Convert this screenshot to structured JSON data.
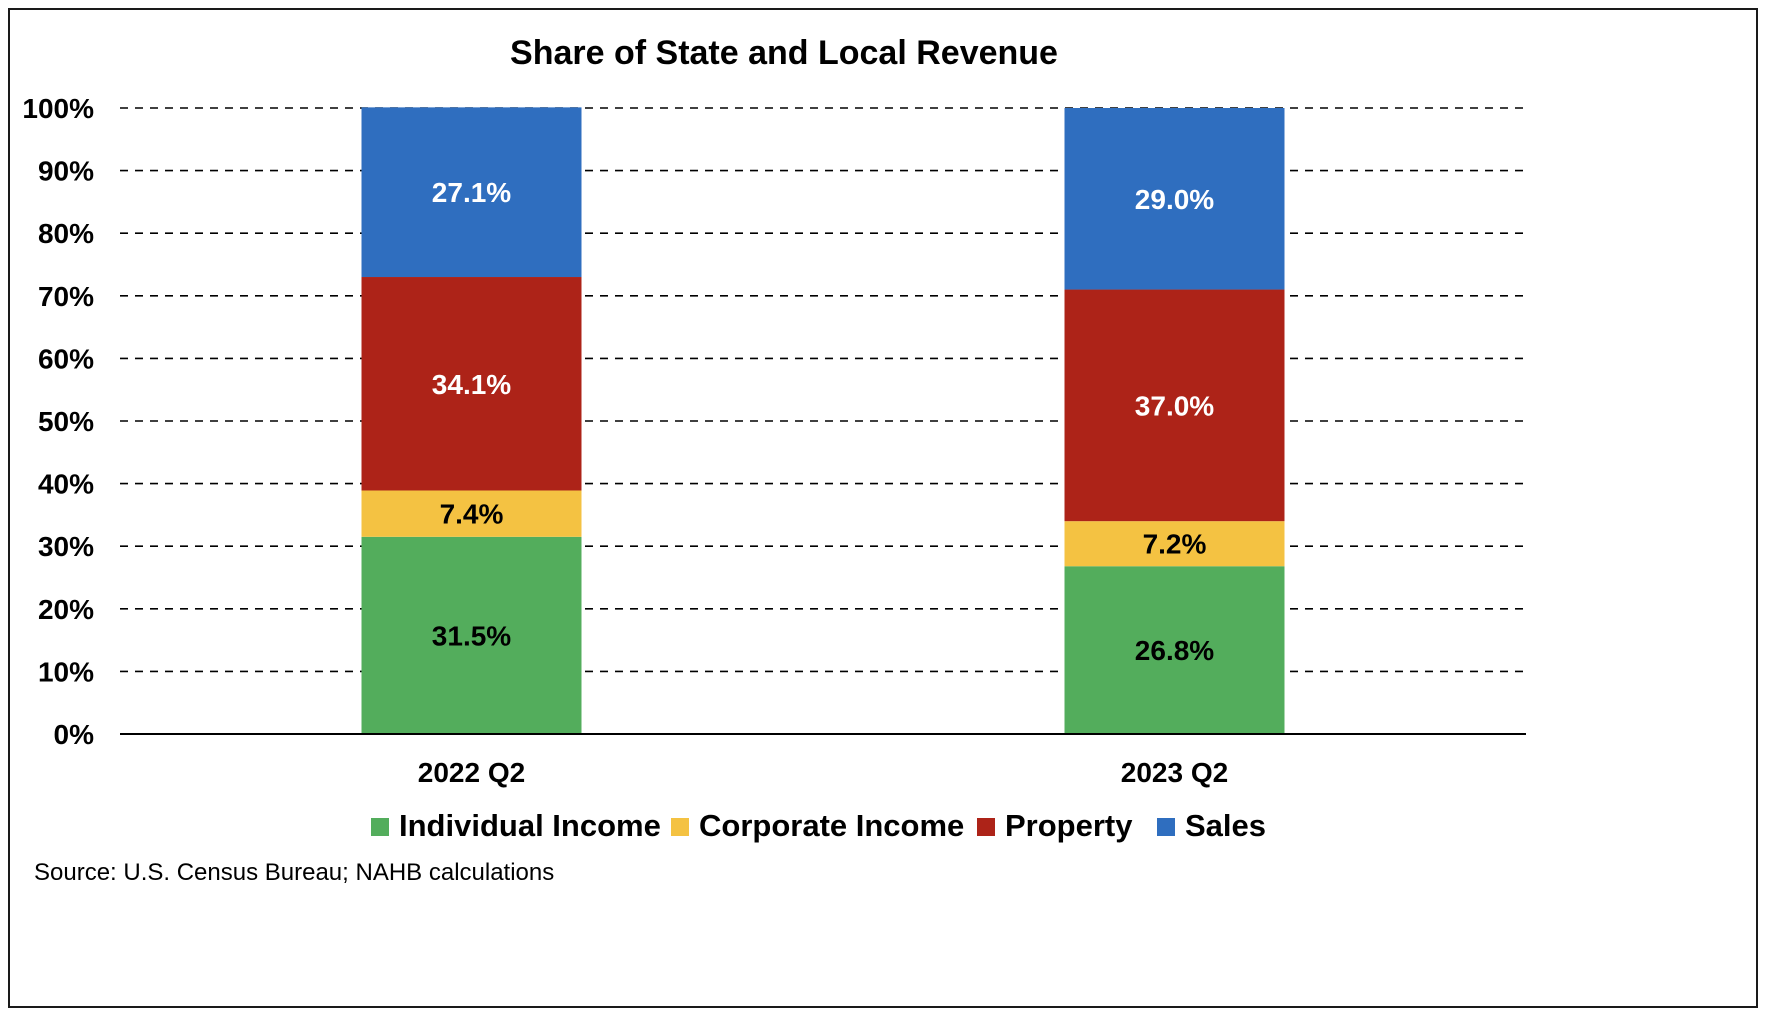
{
  "chart_data": {
    "type": "bar",
    "stacked": true,
    "title": "Share of State and Local Revenue",
    "categories": [
      "2022 Q2",
      "2023 Q2"
    ],
    "series": [
      {
        "name": "Individual Income",
        "values": [
          31.5,
          26.8
        ],
        "labels": [
          "31.5%",
          "26.8%"
        ],
        "color": "#53ad5c",
        "label_color": "#000000"
      },
      {
        "name": "Corporate Income",
        "values": [
          7.4,
          7.2
        ],
        "labels": [
          "7.4%",
          "7.2%"
        ],
        "color": "#f4c242",
        "label_color": "#000000"
      },
      {
        "name": "Property",
        "values": [
          34.1,
          37.0
        ],
        "labels": [
          "34.1%",
          "37.0%"
        ],
        "color": "#ad2318",
        "label_color": "#ffffff"
      },
      {
        "name": "Sales",
        "values": [
          27.1,
          29.0
        ],
        "labels": [
          "27.1%",
          "29.0%"
        ],
        "color": "#2f6ebf",
        "label_color": "#ffffff"
      }
    ],
    "ylim": [
      0,
      100
    ],
    "yticks": [
      0,
      10,
      20,
      30,
      40,
      50,
      60,
      70,
      80,
      90,
      100
    ],
    "ytick_labels": [
      "0%",
      "10%",
      "20%",
      "30%",
      "40%",
      "50%",
      "60%",
      "70%",
      "80%",
      "90%",
      "100%"
    ],
    "xlabel": "",
    "ylabel": "",
    "grid": true,
    "grid_style": "dashed",
    "legend_position": "bottom",
    "source": "Source: U.S. Census Bureau; NAHB calculations"
  }
}
